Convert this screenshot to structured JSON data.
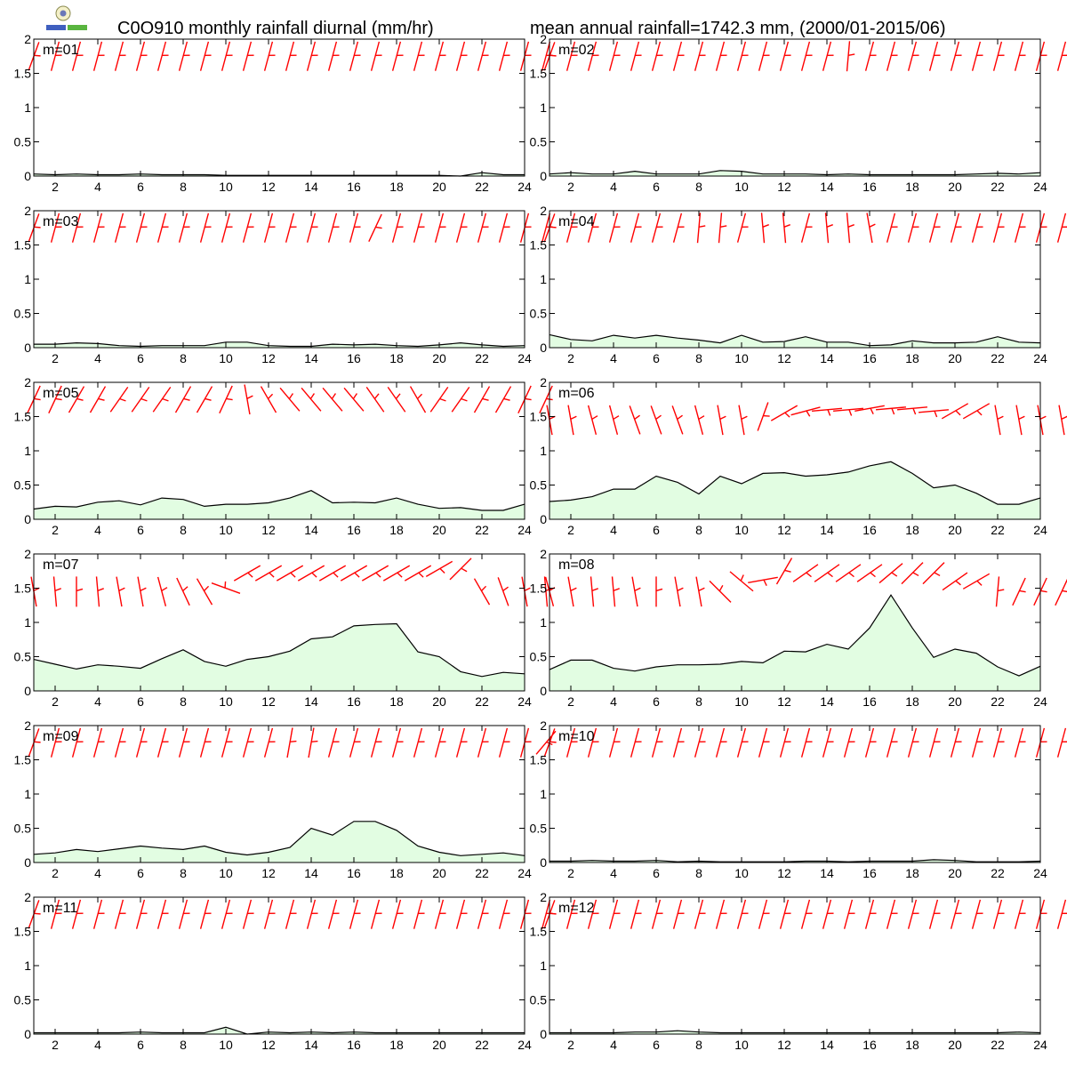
{
  "header": {
    "title_left": "C0O910 monthly rainfall diurnal (mm/hr)",
    "title_right": "mean annual rainfall=1742.3 mm, (2000/01-2015/06)"
  },
  "colors": {
    "rain_fill": "#e2fde2",
    "rain_line": "#000000",
    "wind_barb": "#ff0000"
  },
  "chart_data": {
    "type": "area",
    "x": [
      1,
      2,
      3,
      4,
      5,
      6,
      7,
      8,
      9,
      10,
      11,
      12,
      13,
      14,
      15,
      16,
      17,
      18,
      19,
      20,
      21,
      22,
      23,
      24
    ],
    "xticks": [
      2,
      4,
      6,
      8,
      10,
      12,
      14,
      16,
      18,
      20,
      22,
      24
    ],
    "yticks": [
      0,
      0.5,
      1,
      1.5,
      2
    ],
    "ytick_labels": [
      "0",
      "0.5",
      "1",
      "1.5",
      "2"
    ],
    "xlim": [
      1,
      24
    ],
    "ylim": [
      0,
      2
    ],
    "panels": [
      {
        "label": "m=01",
        "values": [
          0.03,
          0.02,
          0.03,
          0.02,
          0.02,
          0.03,
          0.02,
          0.02,
          0.02,
          0.01,
          0.01,
          0.01,
          0.01,
          0.01,
          0.01,
          0.01,
          0.01,
          0.01,
          0.01,
          0.01,
          0.0,
          0.05,
          0.02,
          0.02
        ],
        "barb_level": [
          1.75,
          1.75,
          1.75,
          1.75,
          1.75,
          1.75,
          1.75,
          1.75,
          1.75,
          1.75,
          1.75,
          1.75,
          1.75,
          1.75,
          1.75,
          1.75,
          1.75,
          1.75,
          1.75,
          1.75,
          1.75,
          1.75,
          1.75,
          1.75,
          1.75
        ],
        "barb_dir": [
          20,
          15,
          15,
          15,
          15,
          15,
          15,
          15,
          15,
          15,
          15,
          15,
          15,
          15,
          15,
          15,
          15,
          15,
          15,
          15,
          15,
          15,
          15,
          15,
          15
        ]
      },
      {
        "label": "m=02",
        "values": [
          0.03,
          0.05,
          0.03,
          0.03,
          0.07,
          0.03,
          0.03,
          0.03,
          0.08,
          0.07,
          0.03,
          0.03,
          0.03,
          0.02,
          0.03,
          0.02,
          0.02,
          0.02,
          0.02,
          0.02,
          0.03,
          0.04,
          0.03,
          0.05
        ],
        "barb_level": [
          1.75,
          1.75,
          1.75,
          1.75,
          1.75,
          1.75,
          1.75,
          1.75,
          1.75,
          1.75,
          1.75,
          1.75,
          1.75,
          1.75,
          1.75,
          1.75,
          1.75,
          1.75,
          1.75,
          1.75,
          1.75,
          1.75,
          1.75,
          1.75,
          1.75
        ],
        "barb_dir": [
          20,
          15,
          15,
          15,
          15,
          15,
          15,
          15,
          15,
          15,
          15,
          15,
          15,
          15,
          5,
          15,
          15,
          15,
          15,
          15,
          15,
          15,
          15,
          15,
          15
        ]
      },
      {
        "label": "m=03",
        "values": [
          0.05,
          0.05,
          0.07,
          0.06,
          0.03,
          0.02,
          0.03,
          0.03,
          0.03,
          0.08,
          0.08,
          0.03,
          0.02,
          0.02,
          0.05,
          0.04,
          0.05,
          0.03,
          0.02,
          0.04,
          0.07,
          0.04,
          0.02,
          0.03
        ],
        "barb_level": [
          1.75,
          1.75,
          1.75,
          1.75,
          1.75,
          1.75,
          1.75,
          1.75,
          1.75,
          1.75,
          1.75,
          1.75,
          1.75,
          1.75,
          1.75,
          1.75,
          1.75,
          1.75,
          1.75,
          1.75,
          1.75,
          1.75,
          1.75,
          1.75,
          1.75
        ],
        "barb_dir": [
          20,
          15,
          15,
          15,
          15,
          15,
          15,
          15,
          15,
          15,
          15,
          15,
          15,
          15,
          15,
          15,
          25,
          15,
          15,
          15,
          15,
          15,
          15,
          15,
          15
        ]
      },
      {
        "label": "m=04",
        "values": [
          0.19,
          0.12,
          0.1,
          0.18,
          0.14,
          0.18,
          0.14,
          0.11,
          0.07,
          0.18,
          0.08,
          0.09,
          0.16,
          0.08,
          0.08,
          0.03,
          0.04,
          0.1,
          0.07,
          0.07,
          0.08,
          0.16,
          0.08,
          0.07
        ],
        "barb_level": [
          1.75,
          1.75,
          1.75,
          1.75,
          1.75,
          1.75,
          1.75,
          1.75,
          1.75,
          1.75,
          1.75,
          1.75,
          1.75,
          1.75,
          1.75,
          1.75,
          1.75,
          1.75,
          1.75,
          1.75,
          1.75,
          1.75,
          1.75,
          1.75,
          1.75
        ],
        "barb_dir": [
          20,
          15,
          15,
          15,
          15,
          15,
          15,
          5,
          5,
          15,
          -5,
          -5,
          15,
          -5,
          -5,
          -10,
          15,
          15,
          15,
          15,
          15,
          15,
          15,
          15,
          15
        ]
      },
      {
        "label": "m=05",
        "values": [
          0.15,
          0.19,
          0.18,
          0.25,
          0.27,
          0.21,
          0.31,
          0.29,
          0.19,
          0.22,
          0.22,
          0.24,
          0.31,
          0.42,
          0.24,
          0.25,
          0.24,
          0.31,
          0.22,
          0.16,
          0.17,
          0.13,
          0.13,
          0.22
        ],
        "barb_level": [
          1.75,
          1.75,
          1.75,
          1.75,
          1.75,
          1.75,
          1.75,
          1.75,
          1.75,
          1.75,
          1.75,
          1.75,
          1.75,
          1.75,
          1.75,
          1.75,
          1.75,
          1.75,
          1.75,
          1.75,
          1.75,
          1.75,
          1.75,
          1.75,
          1.75
        ],
        "barb_dir": [
          25,
          25,
          30,
          30,
          35,
          35,
          35,
          30,
          30,
          25,
          -10,
          -30,
          -40,
          -40,
          -40,
          -40,
          -35,
          -35,
          -30,
          35,
          35,
          30,
          30,
          25,
          25
        ]
      },
      {
        "label": "m=06",
        "values": [
          0.26,
          0.28,
          0.33,
          0.44,
          0.44,
          0.63,
          0.54,
          0.37,
          0.63,
          0.52,
          0.67,
          0.68,
          0.63,
          0.65,
          0.69,
          0.78,
          0.84,
          0.67,
          0.46,
          0.5,
          0.38,
          0.22,
          0.22,
          0.31
        ],
        "barb_level": [
          1.45,
          1.45,
          1.45,
          1.45,
          1.45,
          1.45,
          1.45,
          1.45,
          1.45,
          1.45,
          1.5,
          1.55,
          1.58,
          1.6,
          1.6,
          1.62,
          1.62,
          1.62,
          1.58,
          1.58,
          1.58,
          1.45,
          1.45,
          1.45,
          1.45
        ],
        "barb_dir": [
          -10,
          -10,
          -15,
          -15,
          -20,
          -20,
          -20,
          -15,
          -10,
          -10,
          20,
          60,
          75,
          85,
          85,
          80,
          85,
          85,
          85,
          60,
          60,
          -10,
          -10,
          -10,
          -10
        ]
      },
      {
        "label": "m=07",
        "values": [
          0.46,
          0.39,
          0.32,
          0.38,
          0.36,
          0.33,
          0.47,
          0.6,
          0.43,
          0.36,
          0.46,
          0.5,
          0.58,
          0.76,
          0.79,
          0.95,
          0.97,
          0.98,
          0.57,
          0.5,
          0.28,
          0.21,
          0.27,
          0.25
        ],
        "barb_level": [
          1.45,
          1.45,
          1.45,
          1.45,
          1.45,
          1.45,
          1.45,
          1.45,
          1.45,
          1.5,
          1.72,
          1.72,
          1.72,
          1.72,
          1.72,
          1.72,
          1.72,
          1.72,
          1.72,
          1.78,
          1.78,
          1.45,
          1.45,
          1.45,
          1.45
        ],
        "barb_dir": [
          -10,
          -5,
          0,
          -5,
          -10,
          -10,
          -15,
          -25,
          -30,
          -70,
          60,
          60,
          60,
          60,
          60,
          60,
          60,
          60,
          60,
          60,
          45,
          -30,
          -20,
          -10,
          -5
        ]
      },
      {
        "label": "m=08",
        "values": [
          0.31,
          0.45,
          0.45,
          0.33,
          0.29,
          0.35,
          0.38,
          0.38,
          0.39,
          0.43,
          0.41,
          0.58,
          0.57,
          0.68,
          0.61,
          0.92,
          1.4,
          0.92,
          0.49,
          0.61,
          0.55,
          0.35,
          0.22,
          0.36
        ],
        "barb_level": [
          1.45,
          1.45,
          1.45,
          1.45,
          1.45,
          1.45,
          1.45,
          1.45,
          1.45,
          1.6,
          1.62,
          1.75,
          1.72,
          1.72,
          1.72,
          1.72,
          1.72,
          1.72,
          1.72,
          1.6,
          1.6,
          1.45,
          1.45,
          1.45,
          1.45
        ],
        "barb_dir": [
          -15,
          -10,
          -5,
          -5,
          -10,
          0,
          -10,
          -10,
          -45,
          -50,
          80,
          30,
          55,
          55,
          55,
          55,
          50,
          45,
          45,
          55,
          60,
          5,
          25,
          25,
          25
        ]
      },
      {
        "label": "m=09",
        "values": [
          0.12,
          0.14,
          0.19,
          0.16,
          0.2,
          0.24,
          0.21,
          0.19,
          0.24,
          0.15,
          0.11,
          0.15,
          0.22,
          0.5,
          0.4,
          0.6,
          0.6,
          0.47,
          0.24,
          0.15,
          0.1,
          0.12,
          0.14,
          0.1
        ],
        "barb_level": [
          1.75,
          1.75,
          1.75,
          1.75,
          1.75,
          1.75,
          1.75,
          1.75,
          1.75,
          1.75,
          1.75,
          1.75,
          1.75,
          1.75,
          1.75,
          1.75,
          1.75,
          1.75,
          1.75,
          1.75,
          1.75,
          1.75,
          1.75,
          1.75,
          1.75
        ],
        "barb_dir": [
          20,
          15,
          15,
          15,
          15,
          15,
          15,
          15,
          15,
          15,
          15,
          15,
          10,
          10,
          15,
          15,
          15,
          15,
          15,
          15,
          15,
          15,
          15,
          15,
          40
        ]
      },
      {
        "label": "m=10",
        "values": [
          0.02,
          0.02,
          0.03,
          0.02,
          0.02,
          0.03,
          0.01,
          0.02,
          0.01,
          0.01,
          0.01,
          0.01,
          0.02,
          0.02,
          0.01,
          0.02,
          0.02,
          0.02,
          0.04,
          0.03,
          0.01,
          0.01,
          0.01,
          0.02
        ],
        "barb_level": [
          1.75,
          1.75,
          1.75,
          1.75,
          1.75,
          1.75,
          1.75,
          1.75,
          1.75,
          1.75,
          1.75,
          1.75,
          1.75,
          1.75,
          1.75,
          1.75,
          1.75,
          1.75,
          1.75,
          1.75,
          1.75,
          1.75,
          1.75,
          1.75,
          1.75
        ],
        "barb_dir": [
          20,
          15,
          15,
          15,
          15,
          15,
          15,
          15,
          15,
          15,
          15,
          15,
          15,
          15,
          15,
          15,
          15,
          15,
          15,
          15,
          15,
          15,
          15,
          15,
          15
        ]
      },
      {
        "label": "m=11",
        "values": [
          0.02,
          0.02,
          0.02,
          0.02,
          0.02,
          0.03,
          0.02,
          0.02,
          0.02,
          0.1,
          0.0,
          0.03,
          0.02,
          0.03,
          0.02,
          0.03,
          0.02,
          0.02,
          0.02,
          0.02,
          0.02,
          0.02,
          0.02,
          0.02
        ],
        "barb_level": [
          1.75,
          1.75,
          1.75,
          1.75,
          1.75,
          1.75,
          1.75,
          1.75,
          1.75,
          1.75,
          1.75,
          1.75,
          1.75,
          1.75,
          1.75,
          1.75,
          1.75,
          1.75,
          1.75,
          1.75,
          1.75,
          1.75,
          1.75,
          1.75,
          1.75
        ],
        "barb_dir": [
          20,
          15,
          15,
          15,
          15,
          15,
          15,
          15,
          15,
          15,
          15,
          15,
          15,
          15,
          15,
          15,
          15,
          15,
          15,
          15,
          15,
          15,
          15,
          15,
          15
        ]
      },
      {
        "label": "m=12",
        "values": [
          0.02,
          0.02,
          0.02,
          0.02,
          0.03,
          0.03,
          0.05,
          0.03,
          0.02,
          0.02,
          0.02,
          0.02,
          0.02,
          0.02,
          0.02,
          0.02,
          0.02,
          0.02,
          0.02,
          0.02,
          0.02,
          0.02,
          0.03,
          0.02
        ],
        "barb_level": [
          1.75,
          1.75,
          1.75,
          1.75,
          1.75,
          1.75,
          1.75,
          1.75,
          1.75,
          1.75,
          1.75,
          1.75,
          1.75,
          1.75,
          1.75,
          1.75,
          1.75,
          1.75,
          1.75,
          1.75,
          1.75,
          1.75,
          1.75,
          1.75,
          1.75
        ],
        "barb_dir": [
          20,
          15,
          15,
          15,
          15,
          15,
          15,
          15,
          15,
          15,
          15,
          15,
          15,
          15,
          15,
          15,
          15,
          15,
          15,
          15,
          15,
          15,
          15,
          15,
          15
        ]
      }
    ]
  }
}
